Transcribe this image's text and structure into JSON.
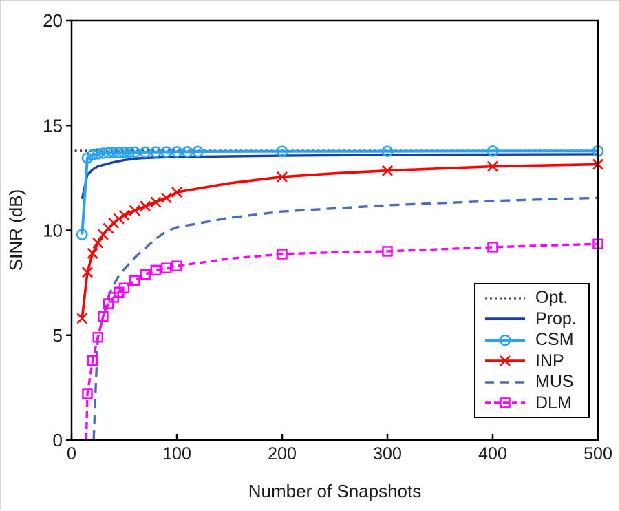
{
  "chart_data": {
    "type": "line",
    "title": "",
    "xlabel": "Number of Snapshots",
    "ylabel": "SINR (dB)",
    "xlim": [
      0,
      500
    ],
    "ylim": [
      0,
      20
    ],
    "xticks": [
      0,
      100,
      200,
      300,
      400,
      500
    ],
    "yticks": [
      0,
      5,
      10,
      15,
      20
    ],
    "grid": false,
    "legend_position": "bottom-right",
    "frame_color": "#000000",
    "series": [
      {
        "name": "Opt.",
        "color": "#3f3f3f",
        "style": "dotted",
        "marker": "none",
        "stroke_width": 3,
        "x": [
          3,
          500
        ],
        "y": [
          13.8,
          13.8
        ]
      },
      {
        "name": "Prop.",
        "color": "#1b3faa",
        "style": "solid",
        "marker": "none",
        "stroke_width": 3.4,
        "x": [
          10,
          15,
          20,
          25,
          30,
          40,
          50,
          65,
          80,
          100,
          150,
          200,
          300,
          400,
          500
        ],
        "y": [
          11.5,
          12.65,
          12.9,
          13.05,
          13.12,
          13.25,
          13.35,
          13.44,
          13.47,
          13.5,
          13.53,
          13.56,
          13.6,
          13.62,
          13.63
        ]
      },
      {
        "name": "CSM",
        "color": "#2aa2f2",
        "style": "solid",
        "marker": "circle",
        "stroke_width": 4,
        "x": [
          10,
          15,
          20,
          25,
          30,
          35,
          40,
          45,
          50,
          55,
          60,
          70,
          80,
          90,
          100,
          110,
          120,
          200,
          300,
          400,
          500
        ],
        "y": [
          9.8,
          13.45,
          13.6,
          13.65,
          13.68,
          13.7,
          13.71,
          13.71,
          13.72,
          13.72,
          13.73,
          13.73,
          13.74,
          13.74,
          13.75,
          13.75,
          13.76,
          13.77,
          13.77,
          13.78,
          13.78
        ],
        "marker_x": [
          10,
          15,
          20,
          25,
          30,
          35,
          40,
          45,
          50,
          55,
          60,
          70,
          80,
          90,
          100,
          110,
          120,
          200,
          300,
          400,
          500
        ]
      },
      {
        "name": "INP",
        "color": "#ff0000",
        "style": "solid",
        "marker": "x",
        "stroke_width": 3.6,
        "x": [
          10,
          15,
          20,
          25,
          30,
          35,
          40,
          45,
          50,
          60,
          70,
          80,
          90,
          100,
          150,
          200,
          250,
          300,
          350,
          400,
          450,
          500
        ],
        "y": [
          5.8,
          8.0,
          8.9,
          9.4,
          9.8,
          10.1,
          10.35,
          10.55,
          10.72,
          10.95,
          11.15,
          11.35,
          11.55,
          11.82,
          12.25,
          12.55,
          12.72,
          12.85,
          12.95,
          13.05,
          13.1,
          13.15
        ],
        "marker_x": [
          10,
          15,
          20,
          25,
          30,
          35,
          40,
          45,
          50,
          60,
          70,
          80,
          90,
          100,
          200,
          300,
          400,
          500
        ]
      },
      {
        "name": "MUS",
        "color": "#4a6db4",
        "style": "dashed",
        "marker": "none",
        "stroke_width": 3.4,
        "x": [
          21,
          23,
          25,
          30,
          35,
          40,
          45,
          50,
          60,
          70,
          80,
          90,
          100,
          150,
          200,
          250,
          300,
          350,
          400,
          450,
          500
        ],
        "y": [
          0,
          2.6,
          4.9,
          5.85,
          6.85,
          7.4,
          7.85,
          8.15,
          8.7,
          9.15,
          9.6,
          9.95,
          10.15,
          10.6,
          10.9,
          11.05,
          11.2,
          11.3,
          11.4,
          11.48,
          11.55
        ]
      },
      {
        "name": "DLM",
        "color": "#ff00ff",
        "style": "densely-dashed",
        "marker": "square",
        "stroke_width": 3.4,
        "x": [
          14,
          15,
          20,
          25,
          30,
          35,
          40,
          45,
          50,
          60,
          70,
          80,
          90,
          100,
          150,
          200,
          250,
          300,
          350,
          400,
          450,
          500
        ],
        "y": [
          0,
          2.2,
          3.8,
          4.9,
          5.9,
          6.5,
          6.8,
          7.05,
          7.25,
          7.6,
          7.9,
          8.1,
          8.2,
          8.3,
          8.65,
          8.87,
          8.95,
          9.0,
          9.1,
          9.2,
          9.28,
          9.35
        ],
        "marker_x": [
          15,
          20,
          25,
          30,
          35,
          40,
          45,
          50,
          60,
          70,
          80,
          90,
          100,
          200,
          300,
          400,
          500
        ]
      }
    ]
  }
}
